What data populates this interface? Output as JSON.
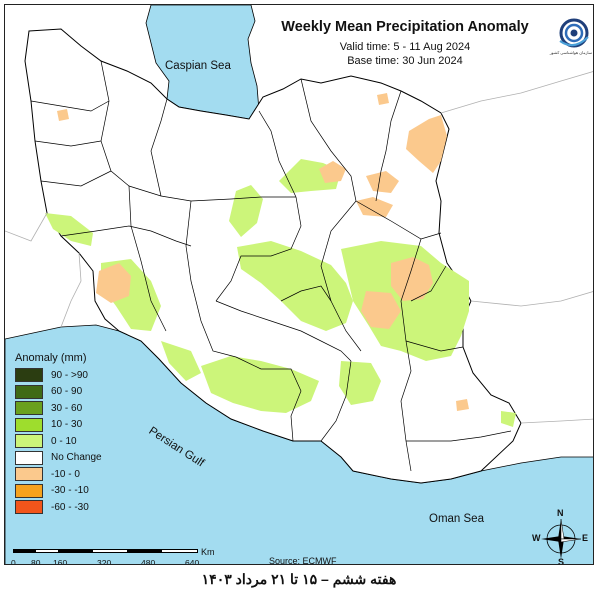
{
  "map": {
    "title": "Weekly Mean Precipitation Anomaly",
    "valid_time": "Valid time: 5 - 11 Aug 2024",
    "base_time": "Base time: 30 Jun 2024",
    "seas": {
      "caspian": "Caspian Sea",
      "persian_gulf": "Persian Gulf",
      "oman": "Oman Sea"
    },
    "source": "Source: ECMWF",
    "colors": {
      "sea": "#a3dcf0",
      "land_outside": "#ffffff",
      "positive_0_10": "#ccf57a",
      "negative_0_10": "#fbc98d",
      "border": "#000000"
    }
  },
  "legend": {
    "title": "Anomaly (mm)",
    "items": [
      {
        "label": "90 - >90",
        "color": "#2b3d11"
      },
      {
        "label": "60 - 90",
        "color": "#3f6a16"
      },
      {
        "label": "30 - 60",
        "color": "#6aa01e"
      },
      {
        "label": "10 - 30",
        "color": "#9edd2d"
      },
      {
        "label": "0 - 10",
        "color": "#ccf57a"
      },
      {
        "label": "No Change",
        "color": "#ffffff"
      },
      {
        "label": "-10 - 0",
        "color": "#fbc98d"
      },
      {
        "label": "-30 - -10",
        "color": "#f6a21d"
      },
      {
        "label": "-60 - -30",
        "color": "#f2551b"
      }
    ]
  },
  "scale_bar": {
    "unit": "Km",
    "ticks": [
      "0",
      "80",
      "160",
      "320",
      "480",
      "640"
    ]
  },
  "compass": {
    "n": "N",
    "s": "S",
    "e": "E",
    "w": "W"
  },
  "logo_text": "سازمان هواشناسی کشور",
  "footer": "هفته ششم – ۱۵ تا ۲۱ مرداد ۱۴۰۳"
}
